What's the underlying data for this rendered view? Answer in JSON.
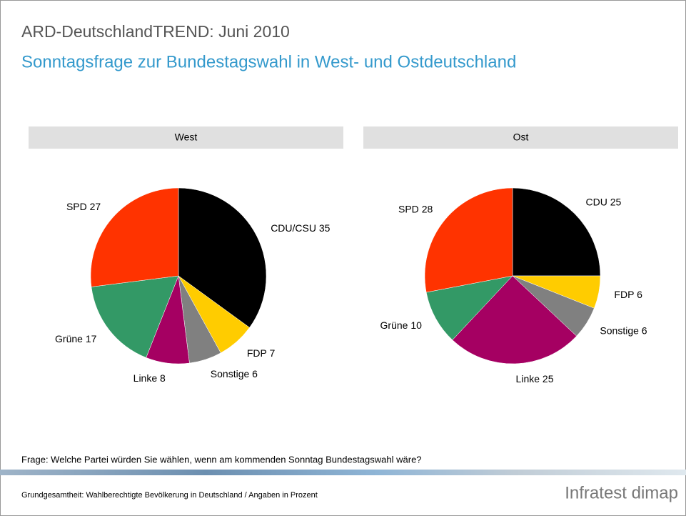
{
  "header": {
    "title": "ARD-DeutschlandTREND: Juni 2010",
    "subtitle": "Sonntagsfrage zur Bundestagswahl in West- und Ostdeutschland"
  },
  "chart_data": [
    {
      "type": "pie",
      "title": "West",
      "categories": [
        "CDU/CSU",
        "FDP",
        "Sonstige",
        "Linke",
        "Grüne",
        "SPD"
      ],
      "values": [
        35,
        7,
        6,
        8,
        17,
        27
      ],
      "colors": [
        "#000000",
        "#ffcc00",
        "#808080",
        "#a50062",
        "#339966",
        "#ff3300"
      ]
    },
    {
      "type": "pie",
      "title": "Ost",
      "categories": [
        "CDU",
        "FDP",
        "Sonstige",
        "Linke",
        "Grüne",
        "SPD"
      ],
      "values": [
        25,
        6,
        6,
        25,
        10,
        28
      ],
      "colors": [
        "#000000",
        "#ffcc00",
        "#808080",
        "#a50062",
        "#339966",
        "#ff3300"
      ]
    }
  ],
  "footer": {
    "question": "Frage: Welche Partei würden Sie wählen, wenn am kommenden Sonntag Bundestagswahl wäre?",
    "note": "Grundgesamtheit: Wahlberechtigte Bevölkerung in Deutschland / Angaben in Prozent",
    "logo": "Infratest dimap"
  }
}
